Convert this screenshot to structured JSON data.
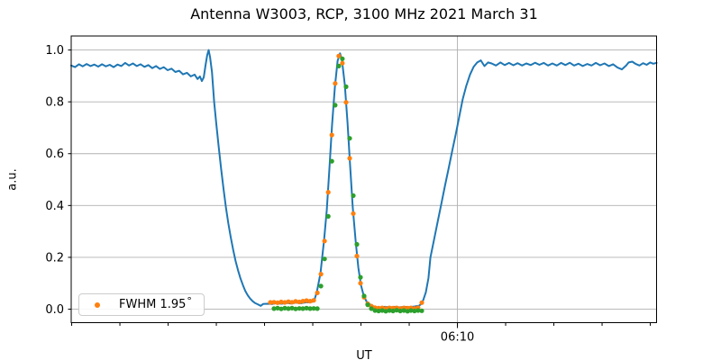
{
  "figure": {
    "title": "Antenna W3003, RCP, 3100 MHz 2021 March 31",
    "xlabel": "UT",
    "ylabel": "a.u.",
    "legend": {
      "label": "FWHM 1.95",
      "degree_suffix": "°",
      "marker_color": "#ff7f0e",
      "position": "lower-left"
    }
  },
  "chart_data": {
    "type": "line",
    "title": "Antenna W3003, RCP, 3100 MHz 2021 March 31",
    "xlabel": "UT",
    "ylabel": "a.u.",
    "x_units": "minutes relative to 06:10 UT",
    "xlim": [
      -16.02,
      8.26
    ],
    "ylim": [
      -0.052,
      1.054
    ],
    "grid": "major",
    "x_major_ticks": [
      {
        "pos": 0,
        "label": "06:10"
      }
    ],
    "x_minor_tick_positions": [
      -16,
      -14,
      -12,
      -10,
      -8,
      -6,
      -4,
      -2,
      0,
      2,
      4,
      6,
      8
    ],
    "y_ticks": [
      {
        "pos": 0.0,
        "label": "0.0"
      },
      {
        "pos": 0.2,
        "label": "0.2"
      },
      {
        "pos": 0.4,
        "label": "0.4"
      },
      {
        "pos": 0.6,
        "label": "0.6"
      },
      {
        "pos": 0.8,
        "label": "0.8"
      },
      {
        "pos": 1.0,
        "label": "1.0"
      }
    ],
    "colors": {
      "grid": "#b0b0b0",
      "spine": "#000000",
      "background": "#ffffff"
    },
    "series": [
      {
        "name": "antenna-signal-line",
        "type": "line",
        "color": "#1f77b4",
        "width": 2,
        "points": [
          [
            -16.02,
            0.94
          ],
          [
            -15.86,
            0.934
          ],
          [
            -15.7,
            0.945
          ],
          [
            -15.54,
            0.937
          ],
          [
            -15.38,
            0.946
          ],
          [
            -15.22,
            0.938
          ],
          [
            -15.06,
            0.944
          ],
          [
            -14.9,
            0.936
          ],
          [
            -14.74,
            0.945
          ],
          [
            -14.58,
            0.937
          ],
          [
            -14.42,
            0.943
          ],
          [
            -14.26,
            0.934
          ],
          [
            -14.1,
            0.944
          ],
          [
            -13.94,
            0.938
          ],
          [
            -13.78,
            0.95
          ],
          [
            -13.62,
            0.94
          ],
          [
            -13.46,
            0.948
          ],
          [
            -13.3,
            0.938
          ],
          [
            -13.14,
            0.945
          ],
          [
            -12.98,
            0.935
          ],
          [
            -12.82,
            0.942
          ],
          [
            -12.66,
            0.93
          ],
          [
            -12.5,
            0.938
          ],
          [
            -12.34,
            0.927
          ],
          [
            -12.18,
            0.934
          ],
          [
            -12.02,
            0.922
          ],
          [
            -11.86,
            0.928
          ],
          [
            -11.7,
            0.915
          ],
          [
            -11.54,
            0.92
          ],
          [
            -11.38,
            0.906
          ],
          [
            -11.22,
            0.912
          ],
          [
            -11.06,
            0.898
          ],
          [
            -10.9,
            0.905
          ],
          [
            -10.78,
            0.888
          ],
          [
            -10.68,
            0.898
          ],
          [
            -10.6,
            0.88
          ],
          [
            -10.52,
            0.895
          ],
          [
            -10.45,
            0.94
          ],
          [
            -10.38,
            0.98
          ],
          [
            -10.32,
            1.0
          ],
          [
            -10.26,
            0.972
          ],
          [
            -10.18,
            0.915
          ],
          [
            -10.09,
            0.8
          ],
          [
            -10.0,
            0.715
          ],
          [
            -9.9,
            0.625
          ],
          [
            -9.8,
            0.54
          ],
          [
            -9.7,
            0.462
          ],
          [
            -9.6,
            0.392
          ],
          [
            -9.5,
            0.33
          ],
          [
            -9.4,
            0.276
          ],
          [
            -9.3,
            0.228
          ],
          [
            -9.2,
            0.186
          ],
          [
            -9.1,
            0.15
          ],
          [
            -9.0,
            0.119
          ],
          [
            -8.9,
            0.093
          ],
          [
            -8.8,
            0.071
          ],
          [
            -8.7,
            0.054
          ],
          [
            -8.6,
            0.041
          ],
          [
            -8.5,
            0.031
          ],
          [
            -8.4,
            0.024
          ],
          [
            -8.28,
            0.019
          ],
          [
            -8.16,
            0.013
          ],
          [
            -8.06,
            0.02
          ],
          [
            -7.9,
            0.021
          ],
          [
            -7.7,
            0.02
          ],
          [
            -7.5,
            0.023
          ],
          [
            -7.3,
            0.021
          ],
          [
            -7.1,
            0.024
          ],
          [
            -6.9,
            0.022
          ],
          [
            -6.7,
            0.025
          ],
          [
            -6.5,
            0.023
          ],
          [
            -6.3,
            0.026
          ],
          [
            -6.1,
            0.027
          ],
          [
            -5.95,
            0.03
          ],
          [
            -5.83,
            0.067
          ],
          [
            -5.68,
            0.139
          ],
          [
            -5.53,
            0.267
          ],
          [
            -5.42,
            0.383
          ],
          [
            -5.31,
            0.542
          ],
          [
            -5.2,
            0.709
          ],
          [
            -5.08,
            0.858
          ],
          [
            -4.97,
            0.958
          ],
          [
            -4.87,
            0.987
          ],
          [
            -4.79,
            0.962
          ],
          [
            -4.67,
            0.866
          ],
          [
            -4.56,
            0.72
          ],
          [
            -4.45,
            0.553
          ],
          [
            -4.34,
            0.393
          ],
          [
            -4.22,
            0.26
          ],
          [
            -4.11,
            0.16
          ],
          [
            -4.0,
            0.093
          ],
          [
            -3.89,
            0.053
          ],
          [
            -3.78,
            0.031
          ],
          [
            -3.66,
            0.02
          ],
          [
            -3.51,
            0.012
          ],
          [
            -3.36,
            0.008
          ],
          [
            -3.2,
            0.007
          ],
          [
            -3.0,
            0.009
          ],
          [
            -2.8,
            0.007
          ],
          [
            -2.6,
            0.009
          ],
          [
            -2.4,
            0.007
          ],
          [
            -2.2,
            0.009
          ],
          [
            -2.0,
            0.008
          ],
          [
            -1.8,
            0.01
          ],
          [
            -1.6,
            0.013
          ],
          [
            -1.5,
            0.02
          ],
          [
            -1.42,
            0.035
          ],
          [
            -1.31,
            0.065
          ],
          [
            -1.2,
            0.12
          ],
          [
            -1.12,
            0.2
          ],
          [
            -0.97,
            0.268
          ],
          [
            -0.82,
            0.337
          ],
          [
            -0.67,
            0.405
          ],
          [
            -0.52,
            0.474
          ],
          [
            -0.37,
            0.54
          ],
          [
            -0.22,
            0.61
          ],
          [
            -0.07,
            0.675
          ],
          [
            0.07,
            0.74
          ],
          [
            0.22,
            0.81
          ],
          [
            0.37,
            0.862
          ],
          [
            0.52,
            0.905
          ],
          [
            0.67,
            0.935
          ],
          [
            0.82,
            0.952
          ],
          [
            0.97,
            0.96
          ],
          [
            1.12,
            0.938
          ],
          [
            1.27,
            0.952
          ],
          [
            1.42,
            0.948
          ],
          [
            1.6,
            0.94
          ],
          [
            1.78,
            0.952
          ],
          [
            1.96,
            0.942
          ],
          [
            2.14,
            0.95
          ],
          [
            2.32,
            0.941
          ],
          [
            2.5,
            0.949
          ],
          [
            2.68,
            0.94
          ],
          [
            2.86,
            0.948
          ],
          [
            3.04,
            0.942
          ],
          [
            3.22,
            0.951
          ],
          [
            3.4,
            0.943
          ],
          [
            3.58,
            0.95
          ],
          [
            3.76,
            0.94
          ],
          [
            3.94,
            0.948
          ],
          [
            4.12,
            0.94
          ],
          [
            4.3,
            0.95
          ],
          [
            4.48,
            0.942
          ],
          [
            4.66,
            0.951
          ],
          [
            4.84,
            0.94
          ],
          [
            5.02,
            0.947
          ],
          [
            5.2,
            0.938
          ],
          [
            5.38,
            0.946
          ],
          [
            5.56,
            0.94
          ],
          [
            5.74,
            0.95
          ],
          [
            5.92,
            0.941
          ],
          [
            6.1,
            0.948
          ],
          [
            6.28,
            0.938
          ],
          [
            6.46,
            0.945
          ],
          [
            6.64,
            0.932
          ],
          [
            6.82,
            0.925
          ],
          [
            7.0,
            0.94
          ],
          [
            7.1,
            0.952
          ],
          [
            7.25,
            0.955
          ],
          [
            7.4,
            0.946
          ],
          [
            7.55,
            0.94
          ],
          [
            7.7,
            0.949
          ],
          [
            7.85,
            0.943
          ],
          [
            8.0,
            0.952
          ],
          [
            8.12,
            0.947
          ],
          [
            8.26,
            0.95
          ]
        ]
      },
      {
        "name": "fwhm-fit-points-orange",
        "type": "scatter",
        "color": "#ff7f0e",
        "radius": 2.6,
        "points": [
          [
            -7.76,
            0.026
          ],
          [
            -7.61,
            0.027
          ],
          [
            -7.46,
            0.025
          ],
          [
            -7.31,
            0.028
          ],
          [
            -7.16,
            0.026
          ],
          [
            -7.01,
            0.029
          ],
          [
            -6.86,
            0.027
          ],
          [
            -6.71,
            0.03
          ],
          [
            -6.56,
            0.028
          ],
          [
            -6.41,
            0.031
          ],
          [
            -6.26,
            0.033
          ],
          [
            -6.11,
            0.031
          ],
          [
            -5.96,
            0.034
          ],
          [
            -5.81,
            0.063
          ],
          [
            -5.66,
            0.135
          ],
          [
            -5.51,
            0.263
          ],
          [
            -5.36,
            0.451
          ],
          [
            -5.21,
            0.672
          ],
          [
            -5.07,
            0.871
          ],
          [
            -4.92,
            0.977
          ],
          [
            -4.77,
            0.949
          ],
          [
            -4.62,
            0.798
          ],
          [
            -4.47,
            0.582
          ],
          [
            -4.32,
            0.369
          ],
          [
            -4.17,
            0.205
          ],
          [
            -4.02,
            0.1
          ],
          [
            -3.87,
            0.046
          ],
          [
            -3.72,
            0.021
          ],
          [
            -3.57,
            0.012
          ],
          [
            -3.42,
            0.006
          ],
          [
            -3.27,
            0.004
          ],
          [
            -3.12,
            0.005
          ],
          [
            -2.97,
            0.003
          ],
          [
            -2.82,
            0.005
          ],
          [
            -2.67,
            0.004
          ],
          [
            -2.52,
            0.005
          ],
          [
            -2.37,
            0.003
          ],
          [
            -2.22,
            0.005
          ],
          [
            -2.07,
            0.004
          ],
          [
            -1.93,
            0.005
          ],
          [
            -1.78,
            0.003
          ],
          [
            -1.63,
            0.006
          ],
          [
            -1.48,
            0.025
          ]
        ]
      },
      {
        "name": "gaussian-fit-points-green",
        "type": "scatter",
        "color": "#2ca02c",
        "radius": 2.6,
        "points": [
          [
            -7.61,
            0.002
          ],
          [
            -7.46,
            0.004
          ],
          [
            -7.31,
            0.001
          ],
          [
            -7.16,
            0.004
          ],
          [
            -7.01,
            0.002
          ],
          [
            -6.86,
            0.004
          ],
          [
            -6.71,
            0.001
          ],
          [
            -6.56,
            0.003
          ],
          [
            -6.41,
            0.002
          ],
          [
            -6.26,
            0.004
          ],
          [
            -6.11,
            0.002
          ],
          [
            -5.96,
            0.003
          ],
          [
            -5.81,
            0.002
          ],
          [
            -5.66,
            0.089
          ],
          [
            -5.51,
            0.194
          ],
          [
            -5.36,
            0.358
          ],
          [
            -5.21,
            0.571
          ],
          [
            -5.07,
            0.787
          ],
          [
            -4.92,
            0.938
          ],
          [
            -4.77,
            0.966
          ],
          [
            -4.62,
            0.858
          ],
          [
            -4.47,
            0.659
          ],
          [
            -4.32,
            0.438
          ],
          [
            -4.17,
            0.25
          ],
          [
            -4.02,
            0.123
          ],
          [
            -3.87,
            0.051
          ],
          [
            -3.72,
            0.017
          ],
          [
            -3.57,
            0.002
          ],
          [
            -3.42,
            -0.005
          ],
          [
            -3.27,
            -0.007
          ],
          [
            -3.12,
            -0.005
          ],
          [
            -2.97,
            -0.008
          ],
          [
            -2.82,
            -0.005
          ],
          [
            -2.67,
            -0.007
          ],
          [
            -2.52,
            -0.004
          ],
          [
            -2.37,
            -0.007
          ],
          [
            -2.22,
            -0.005
          ],
          [
            -2.07,
            -0.008
          ],
          [
            -1.93,
            -0.005
          ],
          [
            -1.78,
            -0.007
          ],
          [
            -1.63,
            -0.005
          ],
          [
            -1.48,
            -0.006
          ]
        ]
      }
    ]
  }
}
